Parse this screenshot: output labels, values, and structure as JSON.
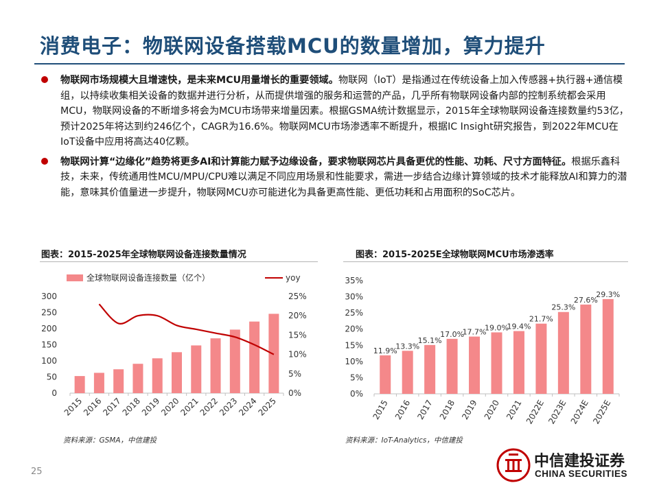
{
  "title": "消费电子：物联网设备搭载MCU的数量增加，算力提升",
  "bullets": [
    {
      "lead": "物联网市场规模大且增速快，是未来MCU用量增长的重要领域。",
      "body": "物联网（IoT）是指通过在传统设备上加入传感器+执行器+通信模组，以持续收集相关设备的数据并进行分析，从而提供增强的服务和运营的产品，几乎所有物联网设备内部的控制系统都会采用MCU，物联网设备的不断增多将会为MCU市场带来增量因素。根据GSMA统计数据显示，2015年全球物联网设备连接数量约53亿，预计2025年将达到约246亿个，CAGR为16.6%。物联网MCU市场渗透率不断提升，根据IC Insight研究报告，到2022年MCU在IoT设备中应用将高达40亿颗。"
    },
    {
      "lead": "物联网计算“边缘化”趋势将更多AI和计算能力赋予边缘设备，要求物联网芯片具备更优的性能、功耗、尺寸方面特征。",
      "body": "根据乐鑫科技，未来，传统通用性MCU/MPU/CPU难以满足不同应用场景和性能要求，需进一步结合边缘计算领域的技术才能释放AI和算力的潜能，意味其价值量进一步提升，物联网MCU亦可能进化为具备更高性能、更低功耗和占用面积的SoC芯片。"
    }
  ],
  "chart_left": {
    "title": "图表：2015-2025年全球物联网设备连接数量情况",
    "source": "资料来源：GSMA，中信建投"
  },
  "chart_right": {
    "title": "图表：2015-2025E全球物联网MCU市场渗透率",
    "source": "资料来源：IoT-Analytics，中信建投"
  },
  "page_number": "25",
  "logo": {
    "cn": "中信建投证券",
    "en": "CHINA SECURITIES"
  },
  "colors": {
    "title_blue": "#1f4e79",
    "bar_pink": "#f4888a",
    "line_red": "#c00000",
    "bullet_red": "#c00000"
  },
  "chart_data": [
    {
      "type": "bar",
      "categories": [
        "2015",
        "2016",
        "2017",
        "2018",
        "2019",
        "2020",
        "2021",
        "2022",
        "2023",
        "2024",
        "2025"
      ],
      "series": [
        {
          "name": "全球物联网设备连接数量（亿个）",
          "type": "bar",
          "axis": "left",
          "values": [
            53,
            63,
            74,
            91,
            108,
            127,
            148,
            170,
            197,
            222,
            246
          ]
        },
        {
          "name": "yoy",
          "type": "line",
          "axis": "right",
          "values": [
            null,
            23,
            18,
            20,
            20,
            17.5,
            16.5,
            15.5,
            14.5,
            12.5,
            10
          ]
        }
      ],
      "ylim_left": [
        0,
        300
      ],
      "yticks_left": [
        "0",
        "50",
        "100",
        "150",
        "200",
        "250",
        "300"
      ],
      "ylim_right": [
        0,
        25
      ],
      "yticks_right": [
        "0%",
        "5%",
        "10%",
        "15%",
        "20%",
        "25%"
      ],
      "legend_position": "top"
    },
    {
      "type": "bar",
      "categories": [
        "2015",
        "2016",
        "2017",
        "2018",
        "2019",
        "2020",
        "2021",
        "2022E",
        "2023E",
        "2024E",
        "2025E"
      ],
      "values": [
        11.9,
        13.3,
        15.1,
        17.0,
        17.7,
        19.0,
        19.4,
        21.7,
        25.3,
        27.6,
        29.3
      ],
      "data_labels": [
        "11.9%",
        "13.3%",
        "15.1%",
        "17.0%",
        "17.7%",
        "19.0%",
        "19.4%",
        "21.7%",
        "25.3%",
        "27.6%",
        "29.3%"
      ],
      "ylim": [
        0,
        35
      ],
      "yticks": [
        "0%",
        "5%",
        "10%",
        "15%",
        "20%",
        "25%",
        "30%",
        "35%"
      ]
    }
  ]
}
